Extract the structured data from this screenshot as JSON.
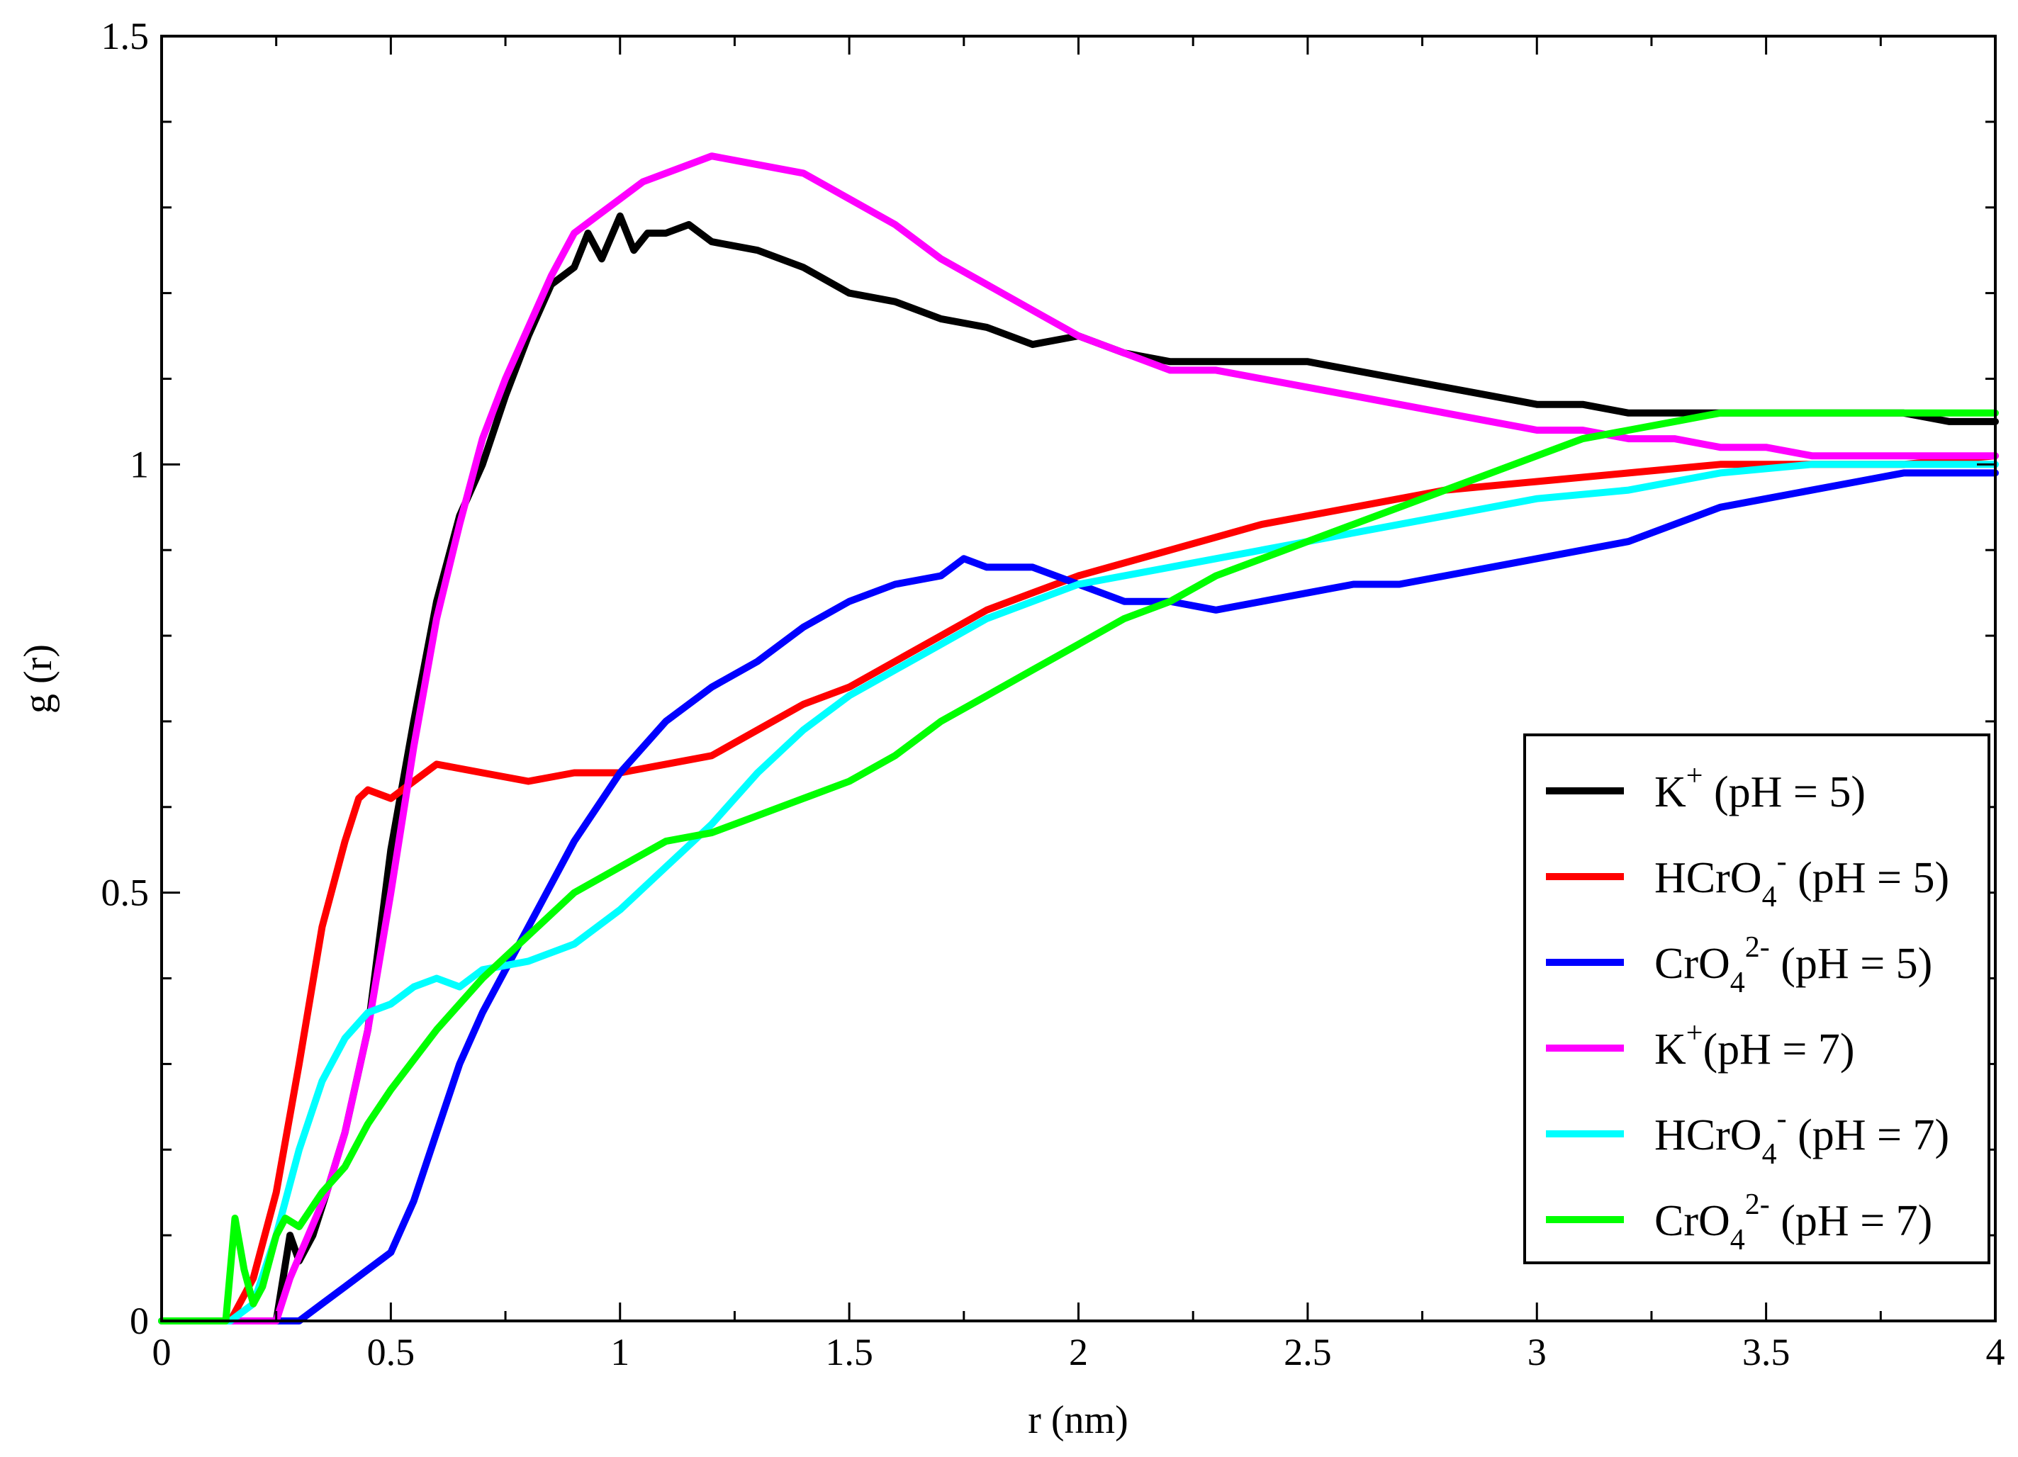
{
  "chart_data": {
    "type": "line",
    "xlabel": "r (nm)",
    "ylabel": "g (r)",
    "xlim": [
      0,
      4
    ],
    "ylim": [
      0,
      1.5
    ],
    "x_ticks": [
      "0",
      "0.5",
      "1",
      "1.5",
      "2",
      "2.5",
      "3",
      "3.5",
      "4"
    ],
    "y_ticks": [
      "0",
      "0.5",
      "1",
      "1.5"
    ],
    "legend_position": "bottom-right",
    "grid": false,
    "series": [
      {
        "name": "K+ (pH=5)",
        "label": {
          "base": "K",
          "sup": "+",
          "sub": "",
          "tail": " (pH = 5)"
        },
        "color": "#000000",
        "x": [
          0,
          0.25,
          0.28,
          0.3,
          0.33,
          0.36,
          0.4,
          0.45,
          0.5,
          0.55,
          0.6,
          0.65,
          0.7,
          0.75,
          0.8,
          0.85,
          0.9,
          0.93,
          0.96,
          1.0,
          1.03,
          1.06,
          1.1,
          1.15,
          1.2,
          1.3,
          1.4,
          1.5,
          1.6,
          1.7,
          1.8,
          1.9,
          2.0,
          2.1,
          2.2,
          2.3,
          2.4,
          2.5,
          2.6,
          2.7,
          2.8,
          2.9,
          3.0,
          3.1,
          3.2,
          3.3,
          3.4,
          3.5,
          3.6,
          3.7,
          3.8,
          3.9,
          4.0
        ],
        "y": [
          0,
          0,
          0.1,
          0.07,
          0.1,
          0.15,
          0.22,
          0.34,
          0.55,
          0.7,
          0.84,
          0.94,
          1.0,
          1.08,
          1.15,
          1.21,
          1.23,
          1.27,
          1.24,
          1.29,
          1.25,
          1.27,
          1.27,
          1.28,
          1.26,
          1.25,
          1.23,
          1.2,
          1.19,
          1.17,
          1.16,
          1.14,
          1.15,
          1.13,
          1.12,
          1.12,
          1.12,
          1.12,
          1.11,
          1.1,
          1.09,
          1.08,
          1.07,
          1.07,
          1.06,
          1.06,
          1.06,
          1.06,
          1.06,
          1.06,
          1.06,
          1.05,
          1.05
        ]
      },
      {
        "name": "HCrO4- (pH=5)",
        "label": {
          "base": "HCrO",
          "sup": "-",
          "sub": "4",
          "tail": " (pH = 5)"
        },
        "color": "#ff0000",
        "x": [
          0,
          0.15,
          0.2,
          0.25,
          0.3,
          0.35,
          0.4,
          0.43,
          0.45,
          0.5,
          0.55,
          0.6,
          0.7,
          0.8,
          0.9,
          1.0,
          1.1,
          1.2,
          1.3,
          1.4,
          1.5,
          1.6,
          1.7,
          1.8,
          1.9,
          2.0,
          2.2,
          2.4,
          2.6,
          2.8,
          3.0,
          3.2,
          3.4,
          3.6,
          3.8,
          4.0
        ],
        "y": [
          0,
          0,
          0.05,
          0.15,
          0.3,
          0.46,
          0.56,
          0.61,
          0.62,
          0.61,
          0.63,
          0.65,
          0.64,
          0.63,
          0.64,
          0.64,
          0.65,
          0.66,
          0.69,
          0.72,
          0.74,
          0.77,
          0.8,
          0.83,
          0.85,
          0.87,
          0.9,
          0.93,
          0.95,
          0.97,
          0.98,
          0.99,
          1.0,
          1.0,
          1.0,
          1.01
        ]
      },
      {
        "name": "CrO4 2- (pH=5)",
        "label": {
          "base": "CrO",
          "sup": "2-",
          "sub": "4",
          "tail": " (pH = 5)"
        },
        "color": "#0000ff",
        "x": [
          0,
          0.22,
          0.3,
          0.35,
          0.4,
          0.45,
          0.5,
          0.55,
          0.6,
          0.65,
          0.7,
          0.8,
          0.9,
          1.0,
          1.1,
          1.2,
          1.3,
          1.4,
          1.5,
          1.6,
          1.7,
          1.75,
          1.8,
          1.9,
          2.0,
          2.1,
          2.2,
          2.3,
          2.4,
          2.5,
          2.6,
          2.7,
          2.8,
          2.9,
          3.0,
          3.1,
          3.2,
          3.3,
          3.4,
          3.5,
          3.6,
          3.7,
          3.8,
          3.9,
          4.0
        ],
        "y": [
          0,
          0,
          0.0,
          0.02,
          0.04,
          0.06,
          0.08,
          0.14,
          0.22,
          0.3,
          0.36,
          0.46,
          0.56,
          0.64,
          0.7,
          0.74,
          0.77,
          0.81,
          0.84,
          0.86,
          0.87,
          0.89,
          0.88,
          0.88,
          0.86,
          0.84,
          0.84,
          0.83,
          0.84,
          0.85,
          0.86,
          0.86,
          0.87,
          0.88,
          0.89,
          0.9,
          0.91,
          0.93,
          0.95,
          0.96,
          0.97,
          0.98,
          0.99,
          0.99,
          0.99
        ]
      },
      {
        "name": "K+ (pH=7)",
        "label": {
          "base": "K",
          "sup": "+",
          "sub": "",
          "tail": "(pH = 7)"
        },
        "color": "#ff00ff",
        "x": [
          0,
          0.25,
          0.28,
          0.32,
          0.36,
          0.4,
          0.45,
          0.5,
          0.55,
          0.6,
          0.65,
          0.7,
          0.75,
          0.8,
          0.85,
          0.9,
          0.95,
          1.0,
          1.05,
          1.1,
          1.15,
          1.2,
          1.3,
          1.4,
          1.5,
          1.6,
          1.7,
          1.8,
          1.9,
          2.0,
          2.1,
          2.2,
          2.3,
          2.4,
          2.5,
          2.6,
          2.7,
          2.8,
          2.9,
          3.0,
          3.1,
          3.2,
          3.3,
          3.4,
          3.5,
          3.6,
          3.7,
          3.8,
          3.9,
          4.0
        ],
        "y": [
          0,
          0,
          0.05,
          0.1,
          0.15,
          0.22,
          0.34,
          0.5,
          0.67,
          0.82,
          0.93,
          1.03,
          1.1,
          1.16,
          1.22,
          1.27,
          1.29,
          1.31,
          1.33,
          1.34,
          1.35,
          1.36,
          1.35,
          1.34,
          1.31,
          1.28,
          1.24,
          1.21,
          1.18,
          1.15,
          1.13,
          1.11,
          1.11,
          1.1,
          1.09,
          1.08,
          1.07,
          1.06,
          1.05,
          1.04,
          1.04,
          1.03,
          1.03,
          1.02,
          1.02,
          1.01,
          1.01,
          1.01,
          1.01,
          1.01
        ]
      },
      {
        "name": "HCrO4- (pH=7)",
        "label": {
          "base": "HCrO",
          "sup": "-",
          "sub": "4",
          "tail": " (pH = 7)"
        },
        "color": "#00ffff",
        "x": [
          0,
          0.15,
          0.2,
          0.25,
          0.3,
          0.35,
          0.4,
          0.45,
          0.5,
          0.55,
          0.6,
          0.65,
          0.7,
          0.8,
          0.9,
          1.0,
          1.1,
          1.2,
          1.3,
          1.4,
          1.5,
          1.6,
          1.7,
          1.8,
          1.9,
          2.0,
          2.2,
          2.4,
          2.6,
          2.8,
          3.0,
          3.2,
          3.4,
          3.6,
          3.8,
          4.0
        ],
        "y": [
          0,
          0,
          0.02,
          0.1,
          0.2,
          0.28,
          0.33,
          0.36,
          0.37,
          0.39,
          0.4,
          0.39,
          0.41,
          0.42,
          0.44,
          0.48,
          0.53,
          0.58,
          0.64,
          0.69,
          0.73,
          0.76,
          0.79,
          0.82,
          0.84,
          0.86,
          0.88,
          0.9,
          0.92,
          0.94,
          0.96,
          0.97,
          0.99,
          1.0,
          1.0,
          1.0
        ]
      },
      {
        "name": "CrO4 2- (pH=7)",
        "label": {
          "base": "CrO",
          "sup": "2-",
          "sub": "4",
          "tail": " (pH = 7)"
        },
        "color": "#00ff00",
        "x": [
          0,
          0.14,
          0.16,
          0.18,
          0.2,
          0.22,
          0.25,
          0.27,
          0.3,
          0.35,
          0.4,
          0.45,
          0.5,
          0.6,
          0.7,
          0.8,
          0.9,
          1.0,
          1.1,
          1.2,
          1.3,
          1.4,
          1.5,
          1.6,
          1.7,
          1.8,
          1.9,
          2.0,
          2.1,
          2.2,
          2.3,
          2.4,
          2.5,
          2.6,
          2.7,
          2.8,
          2.9,
          3.0,
          3.1,
          3.2,
          3.3,
          3.4,
          3.5,
          3.6,
          3.7,
          3.8,
          3.9,
          4.0
        ],
        "y": [
          0,
          0,
          0.12,
          0.06,
          0.02,
          0.04,
          0.1,
          0.12,
          0.11,
          0.15,
          0.18,
          0.23,
          0.27,
          0.34,
          0.4,
          0.45,
          0.5,
          0.53,
          0.56,
          0.57,
          0.59,
          0.61,
          0.63,
          0.66,
          0.7,
          0.73,
          0.76,
          0.79,
          0.82,
          0.84,
          0.87,
          0.89,
          0.91,
          0.93,
          0.95,
          0.97,
          0.99,
          1.01,
          1.03,
          1.04,
          1.05,
          1.06,
          1.06,
          1.06,
          1.06,
          1.06,
          1.06,
          1.06
        ]
      }
    ]
  }
}
